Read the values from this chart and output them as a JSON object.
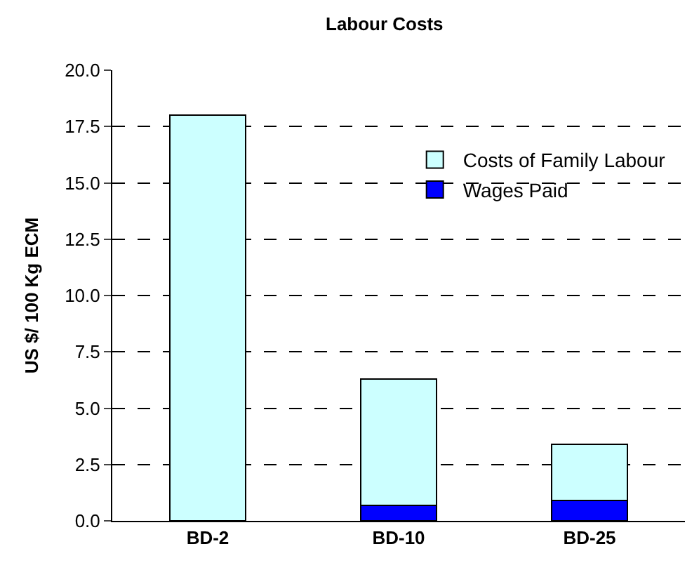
{
  "chart_data": {
    "type": "bar",
    "title": "Labour Costs",
    "ylabel": "US $/ 100 Kg ECM",
    "categories": [
      "BD-2",
      "BD-10",
      "BD-25"
    ],
    "stacked": true,
    "series": [
      {
        "name": "Wages Paid",
        "color": "#0000ff",
        "values": [
          0,
          0.7,
          0.9
        ]
      },
      {
        "name": "Costs of Family Labour",
        "color": "#ccffff",
        "values": [
          18.0,
          5.6,
          2.5
        ]
      }
    ],
    "ylim": [
      0,
      20
    ],
    "yticks": [
      {
        "value": 0,
        "label": "0.0"
      },
      {
        "value": 2.5,
        "label": "2.5"
      },
      {
        "value": 5,
        "label": "5.0"
      },
      {
        "value": 7.5,
        "label": "7.5"
      },
      {
        "value": 10,
        "label": "10.0"
      },
      {
        "value": 12.5,
        "label": "12.5"
      },
      {
        "value": 15,
        "label": "15.0"
      },
      {
        "value": 17.5,
        "label": "17.5"
      },
      {
        "value": 20,
        "label": "20.0"
      }
    ],
    "grid": "y",
    "legend": "top right"
  }
}
